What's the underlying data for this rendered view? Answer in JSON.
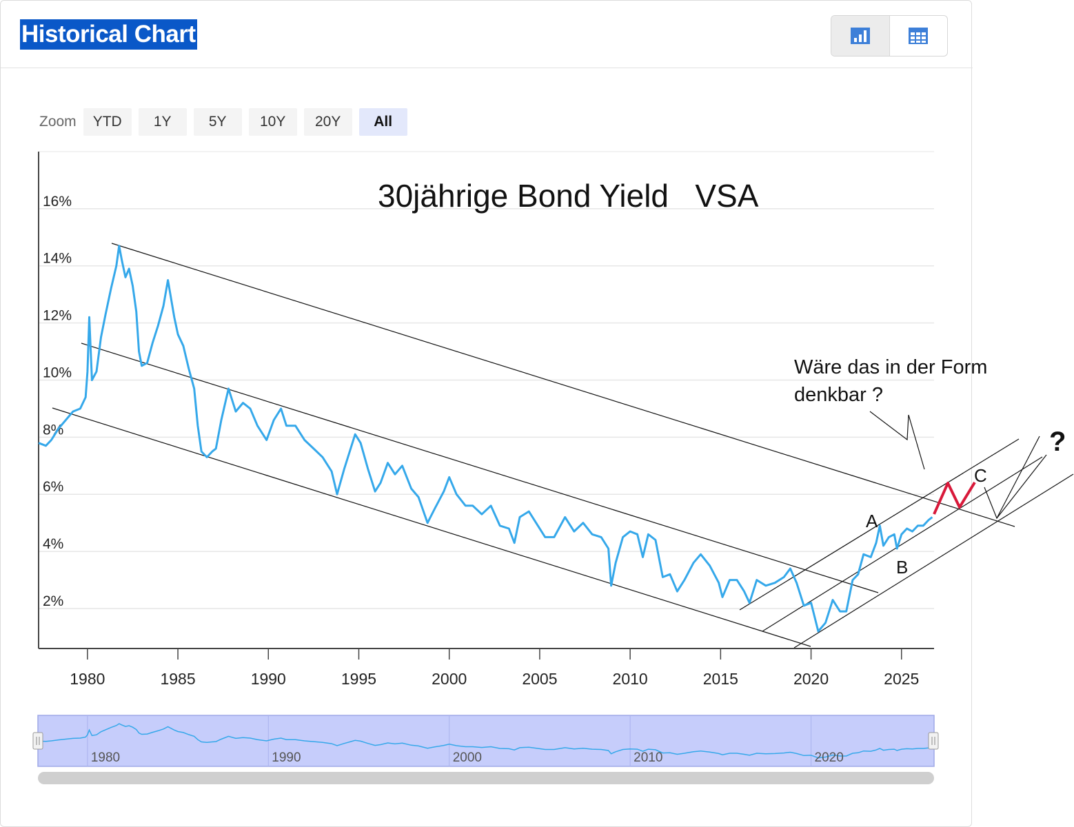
{
  "header": {
    "title": "Historical Chart"
  },
  "view_toggle": [
    {
      "icon": "bar-chart-icon",
      "active": true
    },
    {
      "icon": "table-icon",
      "active": false
    }
  ],
  "zoom": {
    "label": "Zoom",
    "buttons": [
      "YTD",
      "1Y",
      "5Y",
      "10Y",
      "20Y",
      "All"
    ],
    "active": "All"
  },
  "chart_data": {
    "type": "line",
    "title": "30jährige Bond Yield   VSA",
    "xlabel": "",
    "ylabel": "",
    "xlim": [
      1977.3,
      2026.8
    ],
    "ylim": [
      0.6,
      18
    ],
    "x_ticks": [
      1980,
      1985,
      1990,
      1995,
      2000,
      2005,
      2010,
      2015,
      2020,
      2025
    ],
    "y_ticks": [
      {
        "value": 2,
        "label": "2%"
      },
      {
        "value": 4,
        "label": "4%"
      },
      {
        "value": 6,
        "label": "6%"
      },
      {
        "value": 8,
        "label": "8%"
      },
      {
        "value": 10,
        "label": "10%"
      },
      {
        "value": 12,
        "label": "12%"
      },
      {
        "value": 14,
        "label": "14%"
      },
      {
        "value": 16,
        "label": "16%"
      }
    ],
    "grid": true,
    "series": [
      {
        "color": "#35a8ea",
        "points": [
          [
            1977.3,
            7.8
          ],
          [
            1977.7,
            7.7
          ],
          [
            1978.0,
            7.9
          ],
          [
            1978.4,
            8.3
          ],
          [
            1978.8,
            8.6
          ],
          [
            1979.2,
            8.9
          ],
          [
            1979.6,
            9.0
          ],
          [
            1979.9,
            9.4
          ],
          [
            1980.0,
            10.3
          ],
          [
            1980.1,
            12.2
          ],
          [
            1980.25,
            10.0
          ],
          [
            1980.5,
            10.3
          ],
          [
            1980.75,
            11.5
          ],
          [
            1981.0,
            12.3
          ],
          [
            1981.3,
            13.2
          ],
          [
            1981.6,
            14.0
          ],
          [
            1981.75,
            14.7
          ],
          [
            1981.9,
            14.2
          ],
          [
            1982.1,
            13.6
          ],
          [
            1982.3,
            13.9
          ],
          [
            1982.5,
            13.3
          ],
          [
            1982.7,
            12.4
          ],
          [
            1982.85,
            11.0
          ],
          [
            1983.0,
            10.5
          ],
          [
            1983.3,
            10.6
          ],
          [
            1983.6,
            11.3
          ],
          [
            1983.9,
            11.9
          ],
          [
            1984.2,
            12.6
          ],
          [
            1984.45,
            13.5
          ],
          [
            1984.8,
            12.2
          ],
          [
            1985.0,
            11.6
          ],
          [
            1985.3,
            11.2
          ],
          [
            1985.6,
            10.4
          ],
          [
            1985.9,
            9.7
          ],
          [
            1986.1,
            8.4
          ],
          [
            1986.3,
            7.5
          ],
          [
            1986.6,
            7.3
          ],
          [
            1986.9,
            7.5
          ],
          [
            1987.1,
            7.6
          ],
          [
            1987.4,
            8.6
          ],
          [
            1987.8,
            9.7
          ],
          [
            1988.2,
            8.9
          ],
          [
            1988.6,
            9.2
          ],
          [
            1989.0,
            9.0
          ],
          [
            1989.4,
            8.4
          ],
          [
            1989.9,
            7.9
          ],
          [
            1990.3,
            8.6
          ],
          [
            1990.7,
            9.0
          ],
          [
            1991.0,
            8.4
          ],
          [
            1991.5,
            8.4
          ],
          [
            1992.0,
            7.9
          ],
          [
            1992.5,
            7.6
          ],
          [
            1993.0,
            7.3
          ],
          [
            1993.5,
            6.8
          ],
          [
            1993.8,
            6.0
          ],
          [
            1994.2,
            6.9
          ],
          [
            1994.8,
            8.1
          ],
          [
            1995.1,
            7.8
          ],
          [
            1995.5,
            6.9
          ],
          [
            1995.9,
            6.1
          ],
          [
            1996.2,
            6.4
          ],
          [
            1996.6,
            7.1
          ],
          [
            1997.0,
            6.7
          ],
          [
            1997.4,
            7.0
          ],
          [
            1997.9,
            6.2
          ],
          [
            1998.3,
            5.9
          ],
          [
            1998.8,
            5.0
          ],
          [
            1999.2,
            5.5
          ],
          [
            1999.7,
            6.1
          ],
          [
            2000.0,
            6.6
          ],
          [
            2000.4,
            6.0
          ],
          [
            2000.9,
            5.6
          ],
          [
            2001.3,
            5.6
          ],
          [
            2001.8,
            5.3
          ],
          [
            2002.3,
            5.6
          ],
          [
            2002.8,
            4.9
          ],
          [
            2003.3,
            4.8
          ],
          [
            2003.6,
            4.3
          ],
          [
            2003.9,
            5.2
          ],
          [
            2004.4,
            5.4
          ],
          [
            2004.9,
            4.9
          ],
          [
            2005.3,
            4.5
          ],
          [
            2005.8,
            4.5
          ],
          [
            2006.4,
            5.2
          ],
          [
            2006.9,
            4.7
          ],
          [
            2007.4,
            5.0
          ],
          [
            2007.9,
            4.6
          ],
          [
            2008.4,
            4.5
          ],
          [
            2008.8,
            4.1
          ],
          [
            2008.95,
            2.8
          ],
          [
            2009.2,
            3.6
          ],
          [
            2009.6,
            4.5
          ],
          [
            2010.0,
            4.7
          ],
          [
            2010.4,
            4.6
          ],
          [
            2010.7,
            3.8
          ],
          [
            2011.0,
            4.6
          ],
          [
            2011.4,
            4.4
          ],
          [
            2011.8,
            3.1
          ],
          [
            2012.2,
            3.2
          ],
          [
            2012.6,
            2.6
          ],
          [
            2013.0,
            3.0
          ],
          [
            2013.5,
            3.6
          ],
          [
            2013.9,
            3.9
          ],
          [
            2014.4,
            3.5
          ],
          [
            2014.9,
            2.9
          ],
          [
            2015.1,
            2.4
          ],
          [
            2015.5,
            3.0
          ],
          [
            2015.9,
            3.0
          ],
          [
            2016.3,
            2.6
          ],
          [
            2016.6,
            2.2
          ],
          [
            2017.0,
            3.0
          ],
          [
            2017.5,
            2.8
          ],
          [
            2018.0,
            2.9
          ],
          [
            2018.5,
            3.1
          ],
          [
            2018.85,
            3.4
          ],
          [
            2019.2,
            2.9
          ],
          [
            2019.6,
            2.1
          ],
          [
            2020.0,
            2.2
          ],
          [
            2020.2,
            1.7
          ],
          [
            2020.4,
            1.2
          ],
          [
            2020.8,
            1.5
          ],
          [
            2021.2,
            2.3
          ],
          [
            2021.6,
            1.9
          ],
          [
            2021.95,
            1.9
          ],
          [
            2022.3,
            3.0
          ],
          [
            2022.6,
            3.2
          ],
          [
            2022.9,
            3.9
          ],
          [
            2023.3,
            3.8
          ],
          [
            2023.6,
            4.3
          ],
          [
            2023.8,
            4.9
          ],
          [
            2024.0,
            4.2
          ],
          [
            2024.3,
            4.5
          ],
          [
            2024.6,
            4.6
          ],
          [
            2024.75,
            4.1
          ],
          [
            2025.0,
            4.6
          ],
          [
            2025.3,
            4.8
          ],
          [
            2025.6,
            4.7
          ],
          [
            2025.9,
            4.9
          ],
          [
            2026.2,
            4.9
          ],
          [
            2026.5,
            5.1
          ],
          [
            2026.7,
            5.2
          ]
        ]
      }
    ],
    "annotations": {
      "text": "Wäre das in der Form denkbar ?",
      "text_lines": [
        "Wäre das in der Form",
        "denkbar ?"
      ],
      "wave_labels": [
        "A",
        "B",
        "C"
      ],
      "question_mark": "?"
    },
    "navigator": {
      "x_labels": [
        "1980",
        "1990",
        "2000",
        "2010",
        "2020"
      ]
    }
  }
}
